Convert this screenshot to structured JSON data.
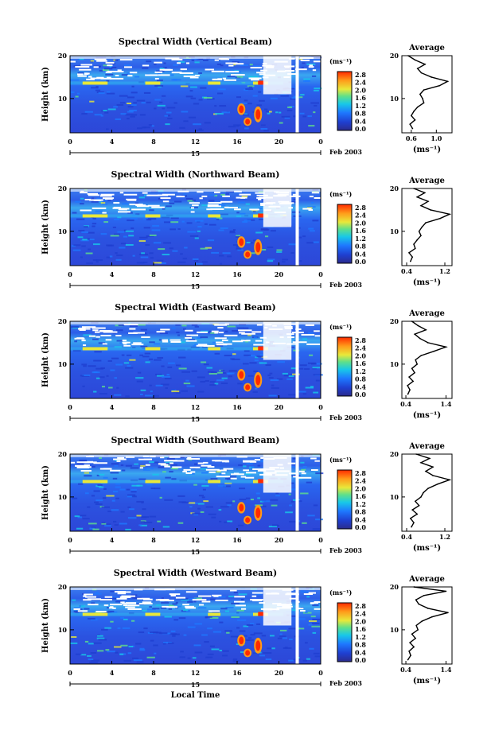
{
  "page": {
    "xlabel": "Local Time",
    "date_text": "Feb 2003",
    "day_label": "15",
    "colorbar_unit": "(ms⁻¹)",
    "colorbar_ticks": [
      "2.8",
      "2.4",
      "2.0",
      "1.6",
      "1.2",
      "0.8",
      "0.4",
      "0.0"
    ],
    "time_ticks": [
      "0",
      "4",
      "8",
      "12",
      "16",
      "20",
      "0"
    ],
    "height_label": "Height (km)",
    "height_ticks": [
      "20",
      "10"
    ],
    "avg_title": "Average",
    "avg_xlabel": "(ms⁻¹)",
    "colors": {
      "low": "#2b2b8c",
      "mid": "#1e90ff",
      "high": "#ff2a00"
    }
  },
  "chart_data": [
    {
      "type": "heatmap",
      "title": "Spectral Width (Vertical Beam)",
      "xlabel": "Local Time",
      "ylabel": "Height (km)",
      "xlim": [
        0,
        24
      ],
      "ylim": [
        2,
        20
      ],
      "clim": [
        0.0,
        2.8
      ],
      "profile": {
        "title": "Average",
        "xlabel": "(ms⁻¹)",
        "xticks": [
          "0.6",
          "1.0"
        ],
        "xlim": [
          0.45,
          1.25
        ],
        "heights": [
          3,
          4,
          5,
          6,
          7,
          8,
          9,
          10,
          11,
          12,
          13,
          14,
          15,
          16,
          17,
          18,
          19,
          20
        ],
        "values": [
          0.62,
          0.58,
          0.66,
          0.6,
          0.64,
          0.7,
          0.8,
          0.78,
          0.74,
          0.8,
          1.05,
          1.18,
          0.92,
          0.76,
          0.7,
          0.82,
          0.66,
          0.55
        ]
      }
    },
    {
      "type": "heatmap",
      "title": "Spectral Width (Northward Beam)",
      "xlabel": "Local Time",
      "ylabel": "Height (km)",
      "xlim": [
        0,
        24
      ],
      "ylim": [
        2,
        20
      ],
      "clim": [
        0.0,
        2.8
      ],
      "profile": {
        "title": "Average",
        "xlabel": "(ms⁻¹)",
        "xticks": [
          "0.4",
          "1.2"
        ],
        "xlim": [
          0.3,
          1.35
        ],
        "heights": [
          3,
          4,
          5,
          6,
          7,
          8,
          9,
          10,
          11,
          12,
          13,
          14,
          15,
          16,
          17,
          18,
          19,
          20
        ],
        "values": [
          0.48,
          0.52,
          0.45,
          0.58,
          0.55,
          0.62,
          0.7,
          0.66,
          0.72,
          0.8,
          1.1,
          1.3,
          0.9,
          0.7,
          0.85,
          0.62,
          0.78,
          0.55
        ]
      }
    },
    {
      "type": "heatmap",
      "title": "Spectral Width (Eastward Beam)",
      "xlabel": "Local Time",
      "ylabel": "Height (km)",
      "xlim": [
        0,
        24
      ],
      "ylim": [
        2,
        20
      ],
      "clim": [
        0.0,
        2.8
      ],
      "profile": {
        "title": "Average",
        "xlabel": "(ms⁻¹)",
        "xticks": [
          "0.4",
          "1.4"
        ],
        "xlim": [
          0.3,
          1.55
        ],
        "heights": [
          3,
          4,
          5,
          6,
          7,
          8,
          9,
          10,
          11,
          12,
          13,
          14,
          15,
          16,
          17,
          18,
          19,
          20
        ],
        "values": [
          0.45,
          0.5,
          0.44,
          0.58,
          0.48,
          0.62,
          0.55,
          0.68,
          0.64,
          0.78,
          1.1,
          1.4,
          0.95,
          0.75,
          0.62,
          0.9,
          0.7,
          0.55
        ]
      }
    },
    {
      "type": "heatmap",
      "title": "Spectral Width (Southward Beam)",
      "xlabel": "Local Time",
      "ylabel": "Height (km)",
      "xlim": [
        0,
        24
      ],
      "ylim": [
        2,
        20
      ],
      "clim": [
        0.0,
        2.8
      ],
      "profile": {
        "title": "Average",
        "xlabel": "(ms⁻¹)",
        "xticks": [
          "0.4",
          "1.2"
        ],
        "xlim": [
          0.3,
          1.35
        ],
        "heights": [
          3,
          4,
          5,
          6,
          7,
          8,
          9,
          10,
          11,
          12,
          13,
          14,
          15,
          16,
          17,
          18,
          19,
          20
        ],
        "values": [
          0.5,
          0.55,
          0.48,
          0.62,
          0.52,
          0.66,
          0.58,
          0.7,
          0.75,
          0.85,
          1.05,
          1.3,
          0.95,
          0.8,
          0.95,
          0.7,
          0.88,
          0.6
        ]
      }
    },
    {
      "type": "heatmap",
      "title": "Spectral Width (Westward Beam)",
      "xlabel": "Local Time",
      "ylabel": "Height (km)",
      "xlim": [
        0,
        24
      ],
      "ylim": [
        2,
        20
      ],
      "clim": [
        0.0,
        2.8
      ],
      "profile": {
        "title": "Average",
        "xlabel": "(ms⁻¹)",
        "xticks": [
          "0.4",
          "1.4"
        ],
        "xlim": [
          0.3,
          1.55
        ],
        "heights": [
          3,
          4,
          5,
          6,
          7,
          8,
          9,
          10,
          11,
          12,
          13,
          14,
          15,
          16,
          17,
          18,
          19,
          20
        ],
        "values": [
          0.45,
          0.52,
          0.48,
          0.6,
          0.5,
          0.64,
          0.55,
          0.7,
          0.66,
          0.8,
          1.05,
          1.45,
          0.95,
          0.72,
          0.65,
          0.85,
          1.4,
          0.6
        ]
      }
    }
  ]
}
